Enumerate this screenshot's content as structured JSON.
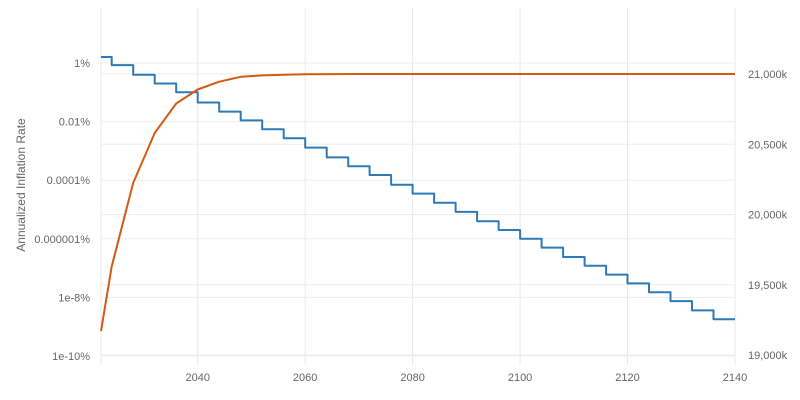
{
  "chart_data": {
    "type": "line",
    "title": "",
    "x_axis": {
      "label": "",
      "range": [
        2022,
        2140
      ],
      "ticks": [
        2040,
        2060,
        2080,
        2100,
        2120,
        2140
      ],
      "tick_labels": [
        "2040",
        "2060",
        "2080",
        "2100",
        "2120",
        "2140"
      ],
      "grid": true
    },
    "y_axis_left": {
      "label": "Annualized Inflation Rate",
      "scale": "log",
      "range_log10": [
        -10,
        0
      ],
      "ticks_log10": [
        0,
        -2,
        -4,
        -6,
        -8,
        -10
      ],
      "tick_labels": [
        "1%",
        "0.01%",
        "0.0001%",
        "0.000001%",
        "1e-8%",
        "1e-10%"
      ],
      "grid": true
    },
    "y_axis_right": {
      "label": "",
      "scale": "linear",
      "range": [
        19000000,
        21250000
      ],
      "ticks": [
        19000000,
        19500000,
        20000000,
        20500000,
        21000000
      ],
      "tick_labels": [
        "19,000k",
        "19,500k",
        "20,000k",
        "20,500k",
        "21,000k"
      ],
      "grid": true
    },
    "series": [
      {
        "axis": "left",
        "step": true,
        "color": "#2e7ab6",
        "points": [
          [
            2022,
            1.6
          ],
          [
            2024,
            0.85
          ],
          [
            2028,
            0.4
          ],
          [
            2032,
            0.2
          ],
          [
            2036,
            0.1
          ],
          [
            2040,
            0.045
          ],
          [
            2044,
            0.022
          ],
          [
            2048,
            0.011
          ],
          [
            2052,
            0.0055
          ],
          [
            2056,
            0.0027
          ],
          [
            2060,
            0.0013
          ],
          [
            2064,
            0.0006
          ],
          [
            2068,
            0.0003
          ],
          [
            2072,
            0.00015
          ],
          [
            2076,
            7e-05
          ],
          [
            2080,
            3.5e-05
          ],
          [
            2084,
            1.7e-05
          ],
          [
            2088,
            8.3e-06
          ],
          [
            2092,
            4e-06
          ],
          [
            2096,
            2e-06
          ],
          [
            2100,
            1e-06
          ],
          [
            2104,
            5e-07
          ],
          [
            2108,
            2.4e-07
          ],
          [
            2112,
            1.2e-07
          ],
          [
            2116,
            6e-08
          ],
          [
            2120,
            3e-08
          ],
          [
            2124,
            1.5e-08
          ],
          [
            2128,
            7.5e-09
          ],
          [
            2132,
            3.6e-09
          ],
          [
            2136,
            1.8e-09
          ],
          [
            2140,
            1.8e-09
          ]
        ]
      },
      {
        "axis": "right",
        "step": false,
        "color": "#d35a14",
        "points": [
          [
            2022,
            19170000
          ],
          [
            2024,
            19630000
          ],
          [
            2028,
            20225000
          ],
          [
            2032,
            20580000
          ],
          [
            2036,
            20790000
          ],
          [
            2040,
            20890000
          ],
          [
            2044,
            20945000
          ],
          [
            2048,
            20980000
          ],
          [
            2052,
            20990000
          ],
          [
            2056,
            20995000
          ],
          [
            2060,
            20998000
          ],
          [
            2070,
            21000000
          ],
          [
            2100,
            21000000
          ],
          [
            2140,
            21000000
          ]
        ]
      }
    ]
  }
}
